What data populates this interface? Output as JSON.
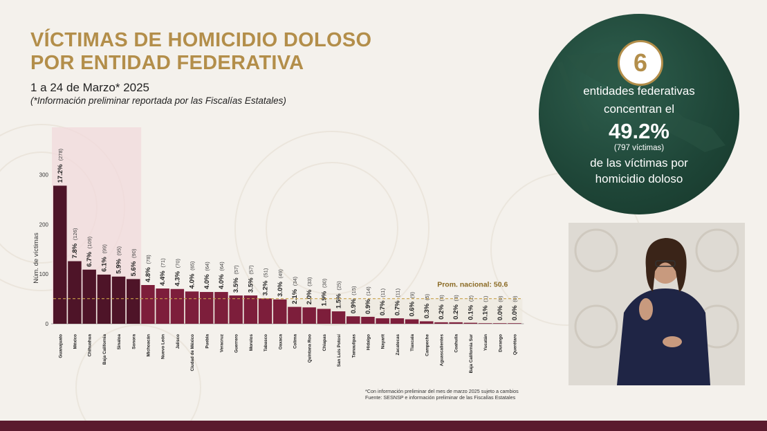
{
  "title_line1": "VÍCTIMAS DE HOMICIDIO DOLOSO",
  "title_line2": "POR ENTIDAD FEDERATIVA",
  "subtitle": "1 a 24 de Marzo* 2025",
  "note": "(*Información preliminar reportada por las Fiscalías Estatales)",
  "footnote_line1": "*Con información preliminar del mes de marzo 2025 sujeto a cambios",
  "footnote_line2": "Fuente: SESNSP e información preliminar de las Fiscalías Estatales",
  "summary": {
    "count": "6",
    "line1": "entidades federativas",
    "line2": "concentran el",
    "percent": "49.2%",
    "victims": "(797 víctimas)",
    "line3": "de las víctimas por",
    "line4": "homicidio doloso"
  },
  "colors": {
    "title": "#b38e4a",
    "bar_top": "#4e1428",
    "bar_rest": "#7d1e3b",
    "highlight": "#f2d9dc",
    "avg_line": "#c9a24a",
    "circle": "#1e4537",
    "bottom_bar": "#5a1a2d"
  },
  "chart_data": {
    "type": "bar",
    "title": "",
    "xlabel": "",
    "ylabel": "Núm. de víctimas",
    "ylim": [
      0,
      330
    ],
    "yticks": [
      0,
      100,
      200,
      300
    ],
    "grid": false,
    "highlighted_count": 6,
    "average_label": "Prom. nacional: 50.6",
    "average_value": 50.6,
    "categories": [
      "Guanajuato",
      "México",
      "Chihuahua",
      "Baja California",
      "Sinaloa",
      "Sonora",
      "Michoacán",
      "Nuevo León",
      "Jalisco",
      "Ciudad de México",
      "Puebla",
      "Veracruz",
      "Guerrero",
      "Morelos",
      "Tabasco",
      "Oaxaca",
      "Colima",
      "Quintana Roo",
      "Chiapas",
      "San Luis Potosí",
      "Tamaulipas",
      "Hidalgo",
      "Nayarit",
      "Zacatecas",
      "Tlaxcala",
      "Campeche",
      "Aguascalientes",
      "Coahuila",
      "Baja California Sur",
      "Yucatán",
      "Durango",
      "Querétaro"
    ],
    "values": [
      278,
      126,
      109,
      99,
      95,
      90,
      78,
      71,
      70,
      65,
      64,
      64,
      57,
      57,
      51,
      49,
      34,
      33,
      30,
      25,
      15,
      14,
      11,
      11,
      9,
      5,
      3,
      3,
      2,
      1,
      0,
      0
    ],
    "percent_labels": [
      "17.2%",
      "7.8%",
      "6.7%",
      "6.1%",
      "5.9%",
      "5.6%",
      "4.8%",
      "4.4%",
      "4.3%",
      "4.0%",
      "4.0%",
      "4.0%",
      "3.5%",
      "3.5%",
      "3.2%",
      "3.0%",
      "2.1%",
      "2.0%",
      "1.9%",
      "1.5%",
      "0.9%",
      "0.9%",
      "0.7%",
      "0.7%",
      "0.6%",
      "0.3%",
      "0.2%",
      "0.2%",
      "0.1%",
      "0.1%",
      "0.0%",
      "0.0%"
    ],
    "count_labels": [
      "(278)",
      "(126)",
      "(109)",
      "(99)",
      "(95)",
      "(90)",
      "(78)",
      "(71)",
      "(70)",
      "(65)",
      "(64)",
      "(64)",
      "(57)",
      "(57)",
      "(51)",
      "(49)",
      "(34)",
      "(33)",
      "(30)",
      "(25)",
      "(15)",
      "(14)",
      "(11)",
      "(11)",
      "(9)",
      "(5)",
      "(3)",
      "(3)",
      "(2)",
      "(1)",
      "(0)",
      "(0)"
    ]
  }
}
